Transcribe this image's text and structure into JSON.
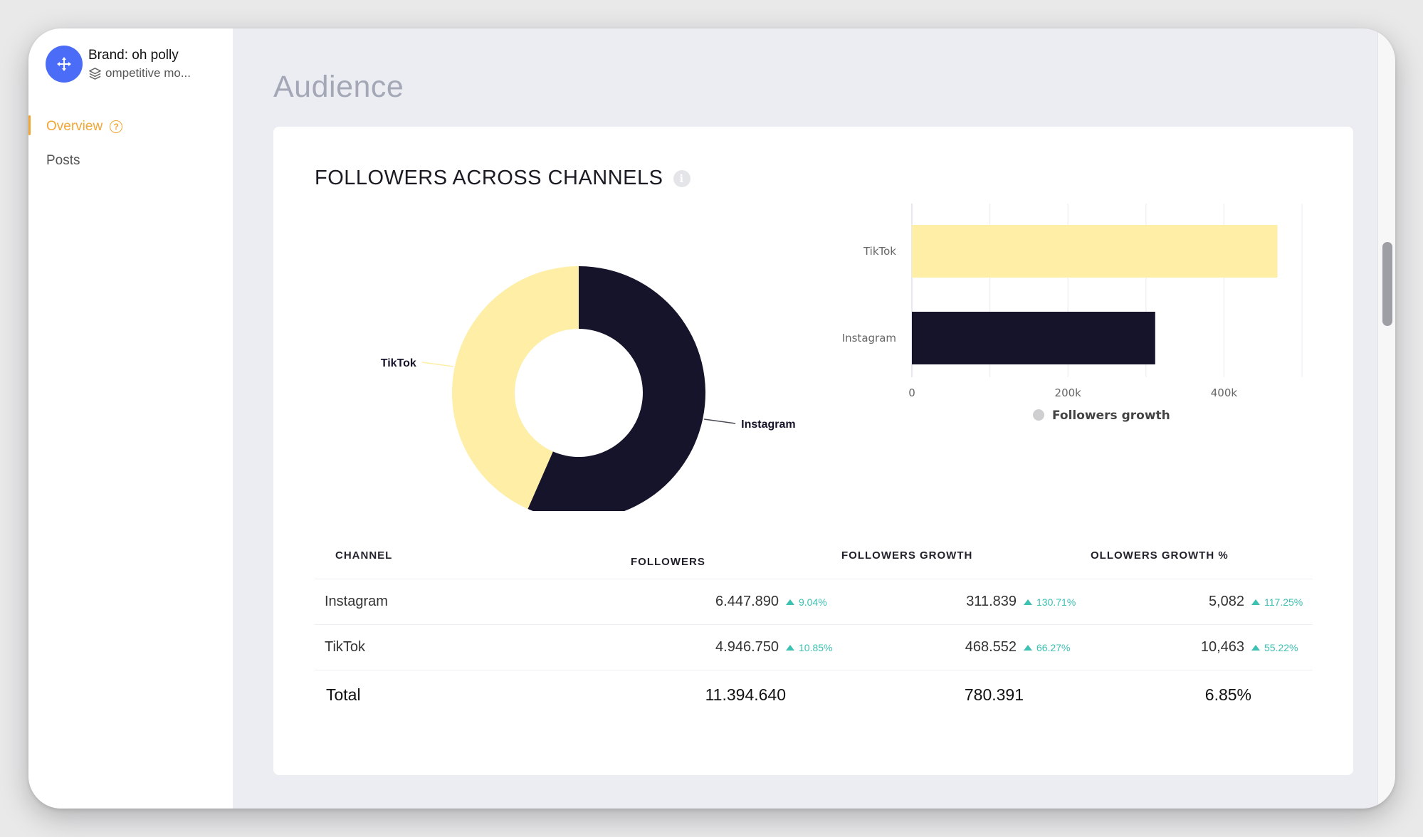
{
  "sidebar": {
    "brand_name": "Brand: oh polly",
    "brand_sub": "ompetitive mo...",
    "items": [
      {
        "label": "Overview",
        "active": true
      },
      {
        "label": "Posts",
        "active": false
      }
    ]
  },
  "page": {
    "title": "Audience"
  },
  "card": {
    "title": "FOLLOWERS ACROSS CHANNELS"
  },
  "colors": {
    "instagram": "#16142b",
    "tiktok": "#feeea6",
    "accent": "#f2a634",
    "growth": "#3cc1b3"
  },
  "chart_data": [
    {
      "type": "pie",
      "variant": "donut",
      "categories": [
        "Instagram",
        "TikTok"
      ],
      "values": [
        6447890,
        4946750
      ],
      "labels": [
        "Instagram",
        "TikTok"
      ]
    },
    {
      "type": "bar",
      "orientation": "horizontal",
      "categories": [
        "TikTok",
        "Instagram"
      ],
      "values": [
        468552,
        311839
      ],
      "x_ticks": [
        "0",
        "200k",
        "400k"
      ],
      "xlim": [
        0,
        500000
      ],
      "legend": [
        "Followers growth"
      ],
      "legend_position": "bottom"
    }
  ],
  "table": {
    "headers": [
      "CHANNEL",
      "FOLLOWERS",
      "FOLLOWERS GROWTH",
      "OLLOWERS GROWTH %"
    ],
    "rows": [
      {
        "channel": "Instagram",
        "followers": "6.447.890",
        "followers_delta": "9.04%",
        "growth": "311.839",
        "growth_delta": "130.71%",
        "growth_pct": "5,082",
        "growth_pct_delta": "117.25%"
      },
      {
        "channel": "TikTok",
        "followers": "4.946.750",
        "followers_delta": "10.85%",
        "growth": "468.552",
        "growth_delta": "66.27%",
        "growth_pct": "10,463",
        "growth_pct_delta": "55.22%"
      }
    ],
    "total": {
      "label": "Total",
      "followers": "11.394.640",
      "growth": "780.391",
      "growth_pct": "6.85%"
    }
  }
}
